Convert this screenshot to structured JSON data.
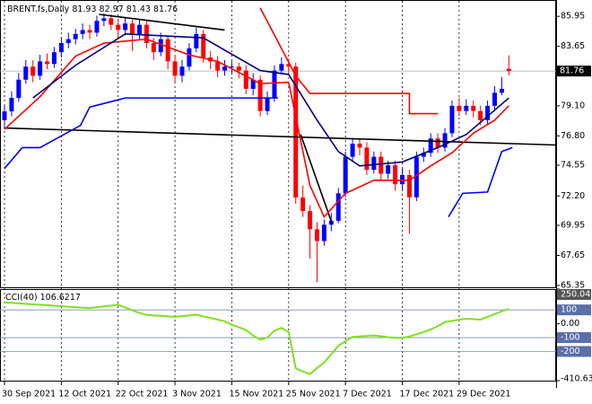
{
  "chart_data": {
    "type": "candlestick",
    "title": "BRENT.fs,Daily",
    "categories": [
      "30 Sep 2021",
      null,
      null,
      null,
      null,
      null,
      null,
      null,
      "12 Oct 2021",
      null,
      null,
      null,
      null,
      null,
      null,
      null,
      "22 Oct 2021",
      null,
      null,
      null,
      null,
      null,
      null,
      null,
      "3 Nov 2021",
      null,
      null,
      null,
      null,
      null,
      null,
      null,
      "15 Nov 2021",
      null,
      null,
      null,
      null,
      null,
      null,
      null,
      "25 Nov 2021",
      null,
      null,
      null,
      null,
      null,
      null,
      null,
      "7 Dec 2021",
      null,
      null,
      null,
      null,
      null,
      null,
      null,
      "17 Dec 2021",
      null,
      null,
      null,
      null,
      null,
      null,
      null,
      "29 Dec 2021",
      null,
      null,
      null,
      null,
      null,
      null,
      null
    ],
    "open": [
      78.0,
      78.67,
      79.7,
      81.1,
      82.1,
      81.4,
      82.5,
      82.3,
      83.2,
      83.9,
      84.2,
      84.6,
      84.9,
      84.7,
      85.6,
      85.8,
      85.3,
      84.9,
      85.4,
      84.6,
      85.3,
      83.9,
      83.2,
      84.2,
      82.5,
      81.4,
      82.1,
      83.5,
      84.6,
      82.8,
      82.5,
      81.8,
      82.1,
      82.1,
      81.8,
      80.4,
      81.1,
      78.7,
      79.7,
      81.8,
      82.3,
      82.1,
      72.08,
      71.04,
      69.65,
      68.75,
      70.0,
      70.3,
      72.4,
      75.2,
      76.2,
      75.9,
      74.2,
      75.2,
      73.9,
      74.55,
      73.1,
      73.8,
      72.1,
      75.2,
      75.5,
      76.6,
      75.9,
      77.0,
      79.1,
      78.7,
      79.1,
      78.7,
      78.0,
      79.1,
      80.1,
      81.93
    ],
    "high": [
      79.1,
      80.2,
      81.6,
      82.6,
      82.6,
      83.0,
      83.1,
      83.6,
      84.3,
      84.7,
      85.0,
      85.4,
      85.3,
      86.0,
      86.2,
      86.1,
      85.7,
      85.8,
      85.7,
      85.7,
      85.6,
      84.3,
      84.7,
      84.5,
      82.9,
      82.6,
      83.9,
      85.1,
      84.9,
      83.3,
      82.9,
      82.6,
      82.5,
      82.4,
      82.2,
      81.6,
      81.4,
      80.2,
      82.2,
      82.8,
      82.7,
      82.4,
      73.0,
      71.5,
      70.2,
      70.4,
      70.9,
      72.8,
      75.6,
      76.6,
      76.6,
      76.3,
      75.6,
      75.6,
      74.9,
      74.9,
      74.3,
      74.2,
      75.6,
      75.9,
      77.0,
      77.0,
      77.4,
      79.5,
      79.7,
      79.6,
      79.5,
      79.1,
      79.5,
      80.6,
      81.3,
      82.97
    ],
    "low": [
      77.3,
      78.3,
      79.4,
      80.8,
      80.9,
      81.1,
      81.9,
      82.0,
      82.8,
      83.5,
      83.8,
      84.2,
      84.2,
      84.4,
      85.2,
      84.9,
      84.3,
      84.5,
      83.3,
      84.2,
      83.5,
      82.6,
      82.9,
      81.9,
      80.9,
      80.9,
      81.8,
      83.2,
      82.4,
      81.9,
      81.3,
      81.4,
      81.6,
      81.2,
      80.0,
      79.9,
      78.3,
      78.4,
      79.4,
      81.5,
      81.6,
      71.6,
      70.6,
      67.4,
      65.6,
      68.4,
      69.5,
      70.1,
      72.1,
      74.9,
      75.3,
      73.8,
      73.9,
      73.4,
      73.5,
      72.6,
      72.7,
      69.3,
      71.8,
      74.8,
      75.2,
      75.5,
      75.6,
      76.7,
      78.3,
      78.4,
      78.2,
      77.6,
      77.7,
      78.8,
      79.9,
      81.43
    ],
    "close": [
      78.67,
      79.7,
      81.1,
      82.1,
      81.4,
      82.5,
      82.3,
      83.2,
      83.9,
      84.2,
      84.6,
      84.9,
      84.7,
      85.6,
      85.8,
      85.3,
      84.9,
      85.4,
      84.6,
      85.3,
      83.9,
      83.2,
      84.2,
      82.5,
      81.4,
      82.1,
      83.5,
      84.6,
      82.8,
      82.5,
      81.8,
      82.1,
      82.1,
      81.8,
      80.4,
      81.1,
      78.7,
      79.7,
      81.8,
      82.3,
      82.1,
      72.08,
      71.04,
      69.65,
      68.75,
      70.0,
      70.3,
      72.4,
      75.2,
      76.2,
      75.9,
      74.2,
      75.2,
      73.9,
      74.55,
      73.1,
      73.8,
      72.1,
      75.2,
      75.5,
      76.6,
      75.9,
      77.0,
      79.1,
      78.7,
      79.1,
      78.7,
      78.0,
      79.1,
      80.1,
      80.4,
      81.76
    ],
    "up_color": "#0000ff",
    "down_color": "#ff0000",
    "ylim": [
      65.14,
      87.13
    ],
    "yticks": [
      85.95,
      83.65,
      {
        "value": 79.1,
        "label": "79.10"
      },
      {
        "value": 76.8,
        "label": "76.80"
      },
      74.55,
      {
        "value": 72.2,
        "label": "72.20"
      },
      69.95,
      67.65,
      65.35
    ],
    "overlays": [
      {
        "color": "#000000",
        "points": [
          [
            0,
            77.4
          ],
          [
            77.7,
            76.1
          ]
        ]
      },
      {
        "color": "#000000",
        "points": [
          [
            13.3,
            86.1
          ],
          [
            31,
            84.9
          ]
        ]
      },
      {
        "color": "#000000",
        "points": [
          [
            41.7,
            76.9
          ],
          [
            46.1,
            70.1
          ]
        ]
      },
      {
        "color": "#0000ff",
        "points": [
          [
            0,
            74.3
          ],
          [
            2.5,
            75.9
          ],
          [
            5,
            75.9
          ],
          [
            10.7,
            77.6
          ],
          [
            12,
            79.0
          ],
          [
            17,
            79.7
          ],
          [
            38.5,
            79.7
          ]
        ]
      },
      {
        "color": "#0000ff",
        "points": [
          [
            62.5,
            70.6
          ],
          [
            64.5,
            72.4
          ],
          [
            68,
            72.5
          ],
          [
            70,
            75.6
          ],
          [
            71.5,
            75.9
          ]
        ]
      },
      {
        "color": "#ff0000",
        "points": [
          [
            36,
            86.6
          ],
          [
            41,
            81.4
          ],
          [
            43,
            80.05
          ],
          [
            57,
            80.05
          ],
          [
            57,
            78.5
          ],
          [
            61,
            78.5
          ]
        ]
      },
      {
        "color": "#ff0000",
        "points": [
          [
            0,
            77.3
          ],
          [
            5,
            79.8
          ],
          [
            10,
            82.9
          ],
          [
            14,
            83.9
          ],
          [
            20,
            84.2
          ],
          [
            26,
            83.0
          ],
          [
            30,
            82.5
          ],
          [
            36,
            80.8
          ],
          [
            40,
            80.9
          ],
          [
            43,
            73.0
          ],
          [
            45,
            70.6
          ],
          [
            48,
            72.4
          ],
          [
            52,
            73.4
          ],
          [
            57,
            73.4
          ],
          [
            60,
            74.5
          ],
          [
            63,
            75.5
          ],
          [
            66,
            77.0
          ],
          [
            69,
            78.0
          ],
          [
            71,
            79.1
          ]
        ]
      },
      {
        "color": "#000080",
        "points": [
          [
            4,
            79.7
          ],
          [
            10,
            82.2
          ],
          [
            17,
            84.6
          ],
          [
            28,
            84.3
          ],
          [
            36,
            81.8
          ],
          [
            40,
            81.5
          ],
          [
            44,
            78.0
          ],
          [
            47,
            75.6
          ],
          [
            50,
            74.5
          ],
          [
            56,
            74.8
          ],
          [
            61,
            75.9
          ],
          [
            65,
            76.9
          ],
          [
            71,
            79.7
          ]
        ]
      }
    ],
    "cci": {
      "title": "CCI(40)",
      "color": "#80e020",
      "values": [
        154,
        151,
        147,
        144,
        140,
        137,
        134,
        130,
        127,
        123,
        120,
        116,
        113,
        119,
        125,
        131,
        137,
        117,
        97,
        77,
        64,
        60,
        57,
        53,
        50,
        55,
        60,
        65,
        53,
        42,
        30,
        18,
        -7,
        -26,
        -45,
        -85,
        -115,
        -100,
        -50,
        -30,
        -60,
        -321,
        -345,
        -363,
        -320,
        -280,
        -220,
        -160,
        -125,
        -95,
        -92,
        -88,
        -84,
        -90,
        -97,
        -101,
        -101,
        -92,
        -75,
        -60,
        -40,
        -18,
        12,
        20,
        30,
        36,
        33,
        30,
        50,
        70,
        90,
        106.6217
      ],
      "ylim": [
        -410.632,
        250.0412
      ],
      "yticks": [
        250.0412,
        100,
        {
          "value": 0,
          "label": "0.00"
        },
        -100,
        -200,
        -410.632
      ],
      "levels": [
        100,
        -100,
        -200
      ]
    }
  }
}
